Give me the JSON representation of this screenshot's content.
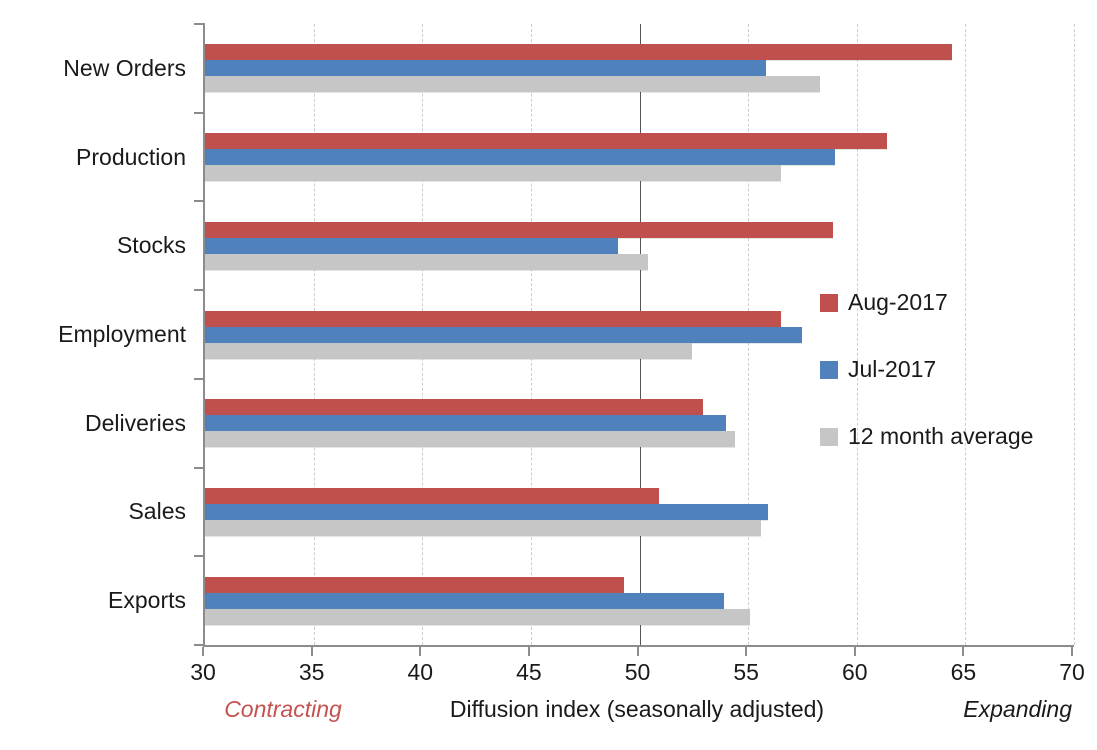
{
  "figure": {
    "background": "#FFFFFF"
  },
  "chart_data": {
    "type": "bar",
    "orientation": "horizontal",
    "title": "",
    "categories": [
      "New Orders",
      "Production",
      "Stocks",
      "Employment",
      "Deliveries",
      "Sales",
      "Exports"
    ],
    "series": [
      {
        "name": "Aug-2017",
        "color": "#C0504D",
        "values": [
          64.4,
          61.4,
          58.9,
          56.5,
          52.9,
          50.9,
          49.3
        ]
      },
      {
        "name": "Jul-2017",
        "color": "#4F81BD",
        "values": [
          55.8,
          59.0,
          49.0,
          57.5,
          54.0,
          55.9,
          53.9
        ]
      },
      {
        "name": "12 month average",
        "color": "#C6C6C6",
        "values": [
          58.3,
          56.5,
          50.4,
          52.4,
          54.4,
          55.6,
          55.1
        ]
      }
    ],
    "x_axis": {
      "min": 30,
      "max": 70,
      "tick_interval": 5,
      "tick_labels": [
        "30",
        "35",
        "40",
        "45",
        "50",
        "55",
        "60",
        "65",
        "70"
      ],
      "label": "Diffusion index (seasonally adjusted)"
    },
    "reference_line": {
      "value": 50,
      "color": "#555555"
    },
    "annotations": {
      "left": {
        "text": "Contracting",
        "color": "#C4534F"
      },
      "right": {
        "text": "Expanding",
        "color": "#1A1A1A"
      }
    },
    "legend": {
      "position": "center-right",
      "entries": [
        "Aug-2017",
        "Jul-2017",
        "12 month average"
      ]
    },
    "grid": {
      "vertical": "dashed",
      "color": "#CDCDCD"
    },
    "axis_color": "#8C8C8C",
    "text_color": "#1A1A1A"
  }
}
